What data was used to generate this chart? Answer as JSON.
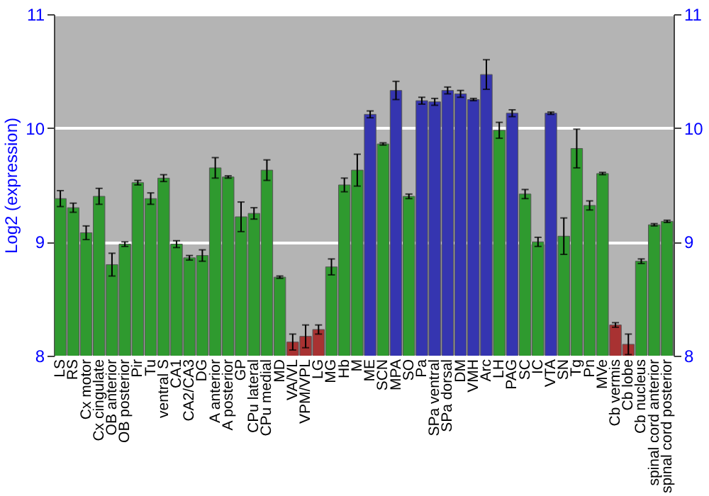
{
  "chart_data": {
    "type": "bar",
    "ylabel": "Log2 (expression)",
    "categories": [
      "LS",
      "RS",
      "Cx motor",
      "Cx cingulate",
      "OB anterior",
      "OB posterior",
      "Pir",
      "Tu",
      "ventral S",
      "CA1",
      "CA2/CA3",
      "DG",
      "A anterior",
      "A posterior",
      "GP",
      "CPu lateral",
      "CPu medial",
      "MD",
      "VA/VL",
      "VPM/VPL",
      "LG",
      "MG",
      "Hb",
      "M",
      "ME",
      "SCN",
      "MPA",
      "SO",
      "Pa",
      "SPa ventral",
      "SPa dorsal",
      "DM",
      "VMH",
      "Arc",
      "LH",
      "PAG",
      "SC",
      "IC",
      "VTA",
      "SN",
      "Tg",
      "Pn",
      "MVe",
      "Cb vermis",
      "Cb lobe",
      "Cb nucleus",
      "spinal cord anterior",
      "spinal cord posterior"
    ],
    "values": [
      9.38,
      9.3,
      9.08,
      9.4,
      8.8,
      8.98,
      9.52,
      9.38,
      9.56,
      8.98,
      8.86,
      8.88,
      9.65,
      9.57,
      9.22,
      9.25,
      9.63,
      8.69,
      8.12,
      8.17,
      8.23,
      8.78,
      9.5,
      9.63,
      10.12,
      9.86,
      10.33,
      9.4,
      10.24,
      10.23,
      10.33,
      10.3,
      10.25,
      10.47,
      9.98,
      10.13,
      9.42,
      9.0,
      10.13,
      9.05,
      9.82,
      9.32,
      9.6,
      8.27,
      8.1,
      8.83,
      9.15,
      9.18
    ],
    "errors": [
      0.07,
      0.04,
      0.06,
      0.07,
      0.1,
      0.02,
      0.02,
      0.05,
      0.03,
      0.03,
      0.02,
      0.05,
      0.09,
      0.01,
      0.13,
      0.05,
      0.09,
      0.01,
      0.07,
      0.1,
      0.04,
      0.07,
      0.06,
      0.14,
      0.03,
      0.01,
      0.08,
      0.02,
      0.03,
      0.03,
      0.03,
      0.03,
      0.01,
      0.13,
      0.07,
      0.03,
      0.04,
      0.04,
      0.01,
      0.16,
      0.17,
      0.04,
      0.01,
      0.02,
      0.09,
      0.02,
      0.01,
      0.01
    ],
    "colors": [
      "#2f9a2f",
      "#2f9a2f",
      "#2f9a2f",
      "#2f9a2f",
      "#2f9a2f",
      "#2f9a2f",
      "#2f9a2f",
      "#2f9a2f",
      "#2f9a2f",
      "#2f9a2f",
      "#2f9a2f",
      "#2f9a2f",
      "#2f9a2f",
      "#2f9a2f",
      "#2f9a2f",
      "#2f9a2f",
      "#2f9a2f",
      "#2f9a2f",
      "#a83232",
      "#a83232",
      "#a83232",
      "#2f9a2f",
      "#2f9a2f",
      "#2f9a2f",
      "#3535b0",
      "#2f9a2f",
      "#3535b0",
      "#2f9a2f",
      "#3535b0",
      "#3535b0",
      "#3535b0",
      "#3535b0",
      "#3535b0",
      "#3535b0",
      "#2f9a2f",
      "#3535b0",
      "#2f9a2f",
      "#2f9a2f",
      "#3535b0",
      "#2f9a2f",
      "#2f9a2f",
      "#2f9a2f",
      "#2f9a2f",
      "#a83232",
      "#a83232",
      "#2f9a2f",
      "#2f9a2f",
      "#2f9a2f"
    ],
    "ylim": [
      8,
      11
    ],
    "yticks": [
      8,
      9,
      10,
      11
    ],
    "y2lim": [
      8,
      11
    ],
    "y2ticks": [
      8,
      9,
      10,
      11
    ],
    "grid": "y"
  }
}
